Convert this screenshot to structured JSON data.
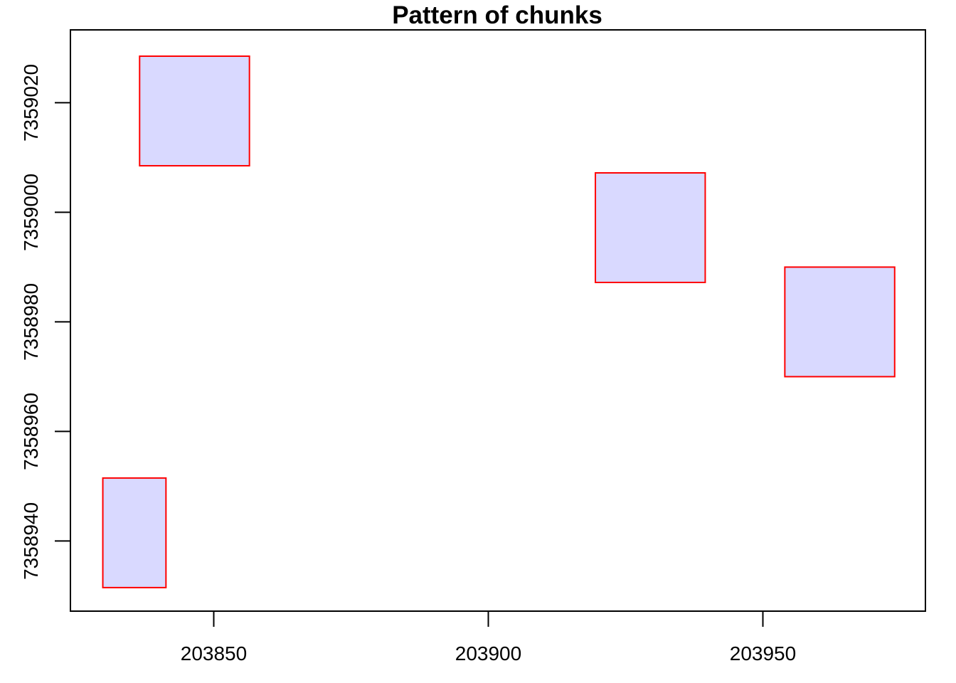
{
  "chart_data": {
    "type": "rect",
    "title": "Pattern of chunks",
    "xlabel": "",
    "ylabel": "",
    "xlim": [
      203823.9,
      203979.6
    ],
    "ylim": [
      7358927.2,
      7359033.3
    ],
    "x_ticks": [
      203850,
      203900,
      203950
    ],
    "y_ticks": [
      7358940,
      7358960,
      7358980,
      7359000,
      7359020
    ],
    "x_tick_labels": [
      "203850",
      "203900",
      "203950"
    ],
    "y_tick_labels": [
      "7358940",
      "7358960",
      "7358980",
      "7359000",
      "7359020"
    ],
    "grid": false,
    "legend": "none",
    "fill_color": "#d9d9ff",
    "stroke_color": "#ff0000",
    "chunks": [
      {
        "xmin": 203836.5,
        "xmax": 203856.5,
        "ymin": 7359008.5,
        "ymax": 7359028.5
      },
      {
        "xmin": 203919.5,
        "xmax": 203939.5,
        "ymin": 7358987.2,
        "ymax": 7359007.2
      },
      {
        "xmin": 203954.0,
        "xmax": 203974.0,
        "ymin": 7358970.0,
        "ymax": 7358990.0
      },
      {
        "xmin": 203829.8,
        "xmax": 203841.3,
        "ymin": 7358931.5,
        "ymax": 7358951.5
      }
    ]
  }
}
